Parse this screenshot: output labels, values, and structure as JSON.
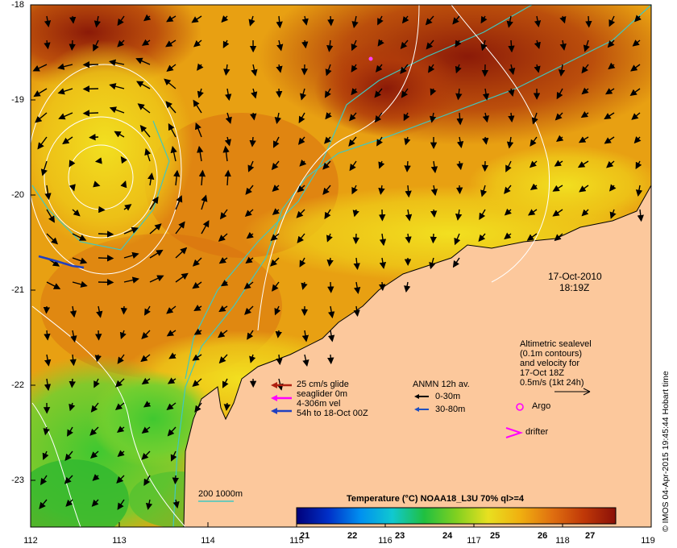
{
  "map": {
    "date_line1": "17-Oct-2010",
    "date_line2": "18:19Z",
    "credit": "© IMOS 04-Apr-2015 19:45:44 Hobart time",
    "lat_labels": [
      "-18",
      "-19",
      "-20",
      "-21",
      "-22",
      "-23"
    ],
    "lon_labels": [
      "112",
      "113",
      "114",
      "115",
      "116",
      "117",
      "118",
      "119"
    ]
  },
  "legend": {
    "altimetric": [
      "Altimetric sealevel",
      "(0.1m contours)",
      "and velocity for",
      "17-Oct 18Z",
      "0.5m/s (1kt 24h)"
    ],
    "glider": [
      "25 cm/s glide",
      "seaglider 0m",
      "4-306m vel",
      "54h to 18-Oct 00Z"
    ],
    "anmn_title": "ANMN 12h av.",
    "anmn_1": "0-30m",
    "anmn_2": "30-80m",
    "argo": "Argo",
    "drifter": "drifter",
    "isobath": "200  1000m",
    "colorbar_title": "Temperature (°C) NOAA18_L3U 70% ql>=4",
    "colorbar_ticks": [
      "21",
      "22",
      "23",
      "24",
      "25",
      "26",
      "27"
    ]
  },
  "colors": {
    "land": "#fcc89c",
    "isobath": "#40c8c0",
    "glider_arrow": "#b02010",
    "glider_vel": "#ff00ff",
    "glider_track": "#2040c0",
    "anmn_deep": "#2050c0"
  }
}
